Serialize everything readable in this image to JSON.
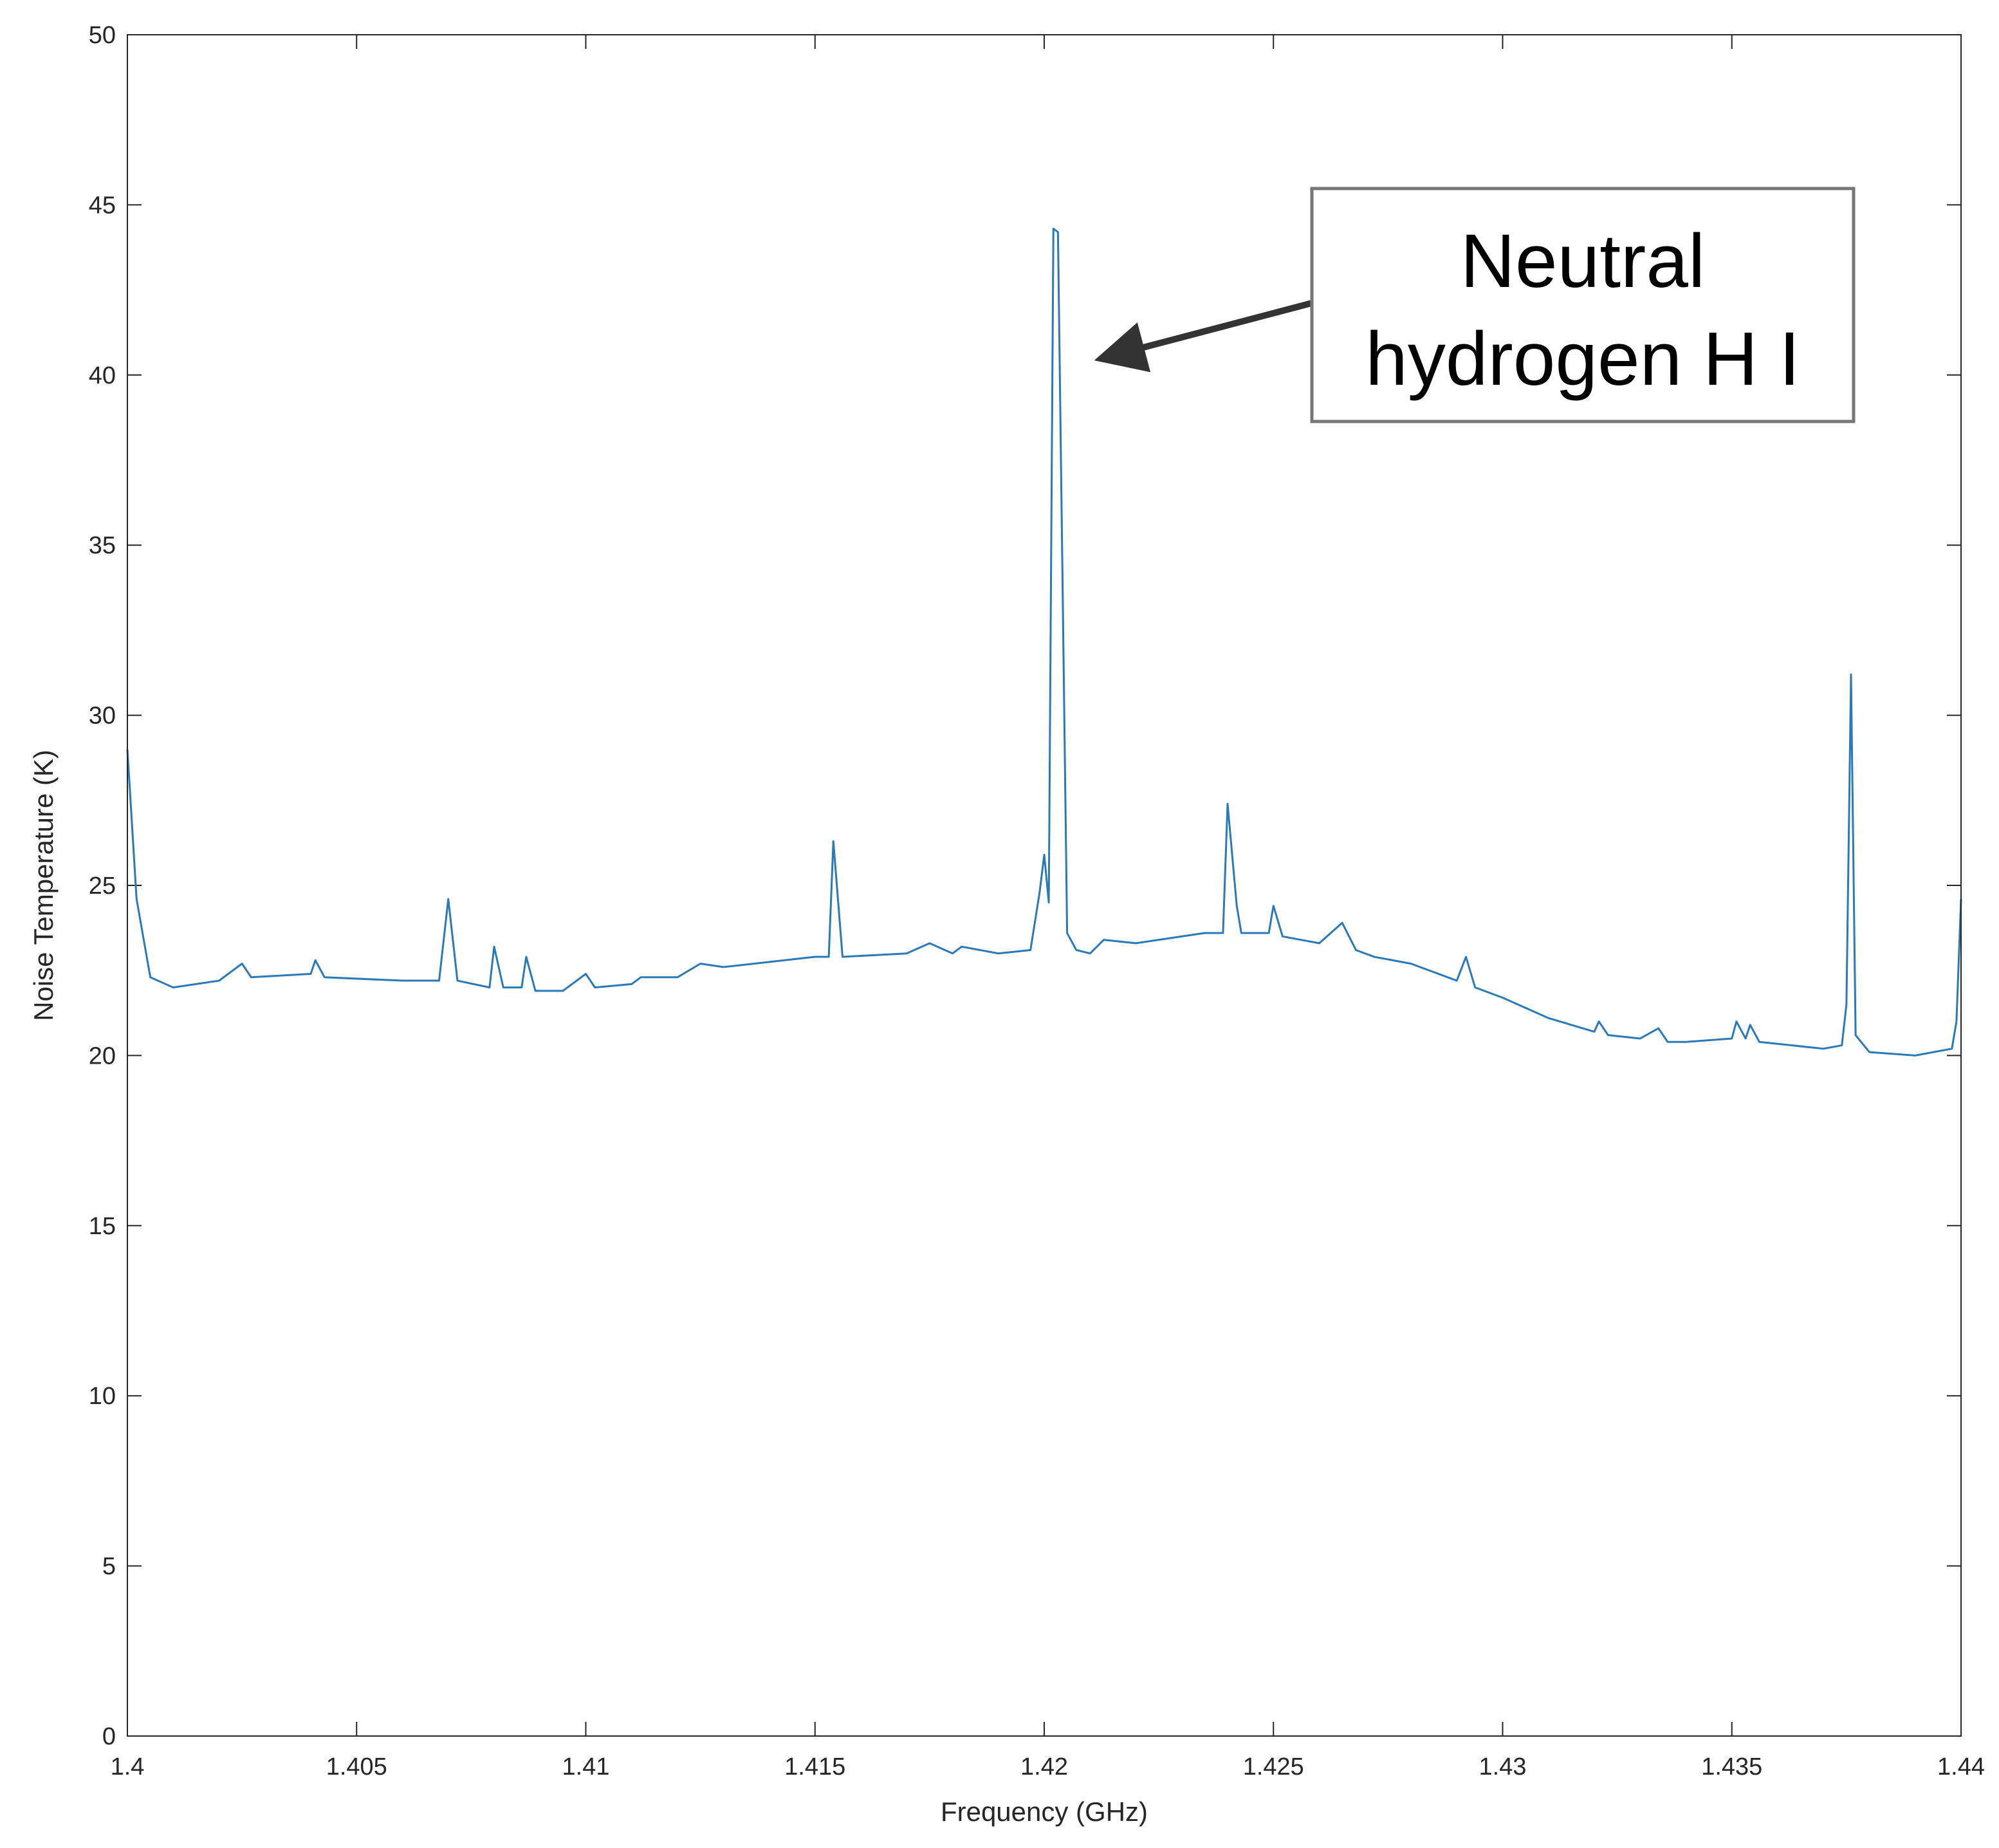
{
  "chart_data": {
    "type": "line",
    "xlabel": "Frequency (GHz)",
    "ylabel": "Noise Temperature (K)",
    "annotation": [
      "Neutral",
      "hydrogen H I"
    ],
    "color": "#2a7ab8",
    "xlim": [
      1.4,
      1.44
    ],
    "ylim": [
      0,
      50
    ],
    "xticks": [
      1.4,
      1.405,
      1.41,
      1.415,
      1.42,
      1.425,
      1.43,
      1.435,
      1.44
    ],
    "yticks": [
      0,
      5,
      10,
      15,
      20,
      25,
      30,
      35,
      40,
      45,
      50
    ],
    "x": [
      1.4,
      1.4002,
      1.4005,
      1.401,
      1.402,
      1.4025,
      1.4027,
      1.404,
      1.4041,
      1.4043,
      1.406,
      1.4068,
      1.407,
      1.4072,
      1.4079,
      1.408,
      1.4082,
      1.4086,
      1.4087,
      1.4089,
      1.4095,
      1.41,
      1.4102,
      1.411,
      1.4112,
      1.412,
      1.4125,
      1.413,
      1.415,
      1.4153,
      1.4154,
      1.4156,
      1.417,
      1.4175,
      1.418,
      1.4182,
      1.419,
      1.4197,
      1.4199,
      1.42,
      1.4201,
      1.4202,
      1.4203,
      1.4205,
      1.4207,
      1.421,
      1.4213,
      1.422,
      1.4235,
      1.4239,
      1.424,
      1.4242,
      1.4243,
      1.4249,
      1.425,
      1.4252,
      1.426,
      1.4265,
      1.4268,
      1.4272,
      1.428,
      1.429,
      1.4292,
      1.4294,
      1.43,
      1.431,
      1.432,
      1.4321,
      1.4323,
      1.433,
      1.4334,
      1.4336,
      1.434,
      1.435,
      1.4351,
      1.4353,
      1.4354,
      1.4356,
      1.437,
      1.4374,
      1.4375,
      1.4376,
      1.4377,
      1.438,
      1.439,
      1.4398,
      1.4399,
      1.44
    ],
    "values": [
      29,
      24.6,
      22.3,
      22.0,
      22.2,
      22.7,
      22.3,
      22.4,
      22.8,
      22.3,
      22.2,
      22.2,
      24.6,
      22.2,
      22.0,
      23.2,
      22.0,
      22.0,
      22.9,
      21.9,
      21.9,
      22.4,
      22.0,
      22.1,
      22.3,
      22.3,
      22.7,
      22.6,
      22.9,
      22.9,
      26.3,
      22.9,
      23.0,
      23.3,
      23.0,
      23.2,
      23.0,
      23.1,
      24.8,
      25.9,
      24.5,
      44.3,
      44.2,
      23.6,
      23.1,
      23.0,
      23.4,
      23.3,
      23.6,
      23.6,
      27.4,
      24.4,
      23.6,
      23.6,
      24.4,
      23.5,
      23.3,
      23.9,
      23.1,
      22.9,
      22.7,
      22.2,
      22.9,
      22.0,
      21.7,
      21.1,
      20.7,
      21.0,
      20.6,
      20.5,
      20.8,
      20.4,
      20.4,
      20.5,
      21.0,
      20.5,
      20.9,
      20.4,
      20.2,
      20.3,
      21.5,
      31.2,
      20.6,
      20.1,
      20.0,
      20.2,
      21.0,
      24.6
    ]
  }
}
